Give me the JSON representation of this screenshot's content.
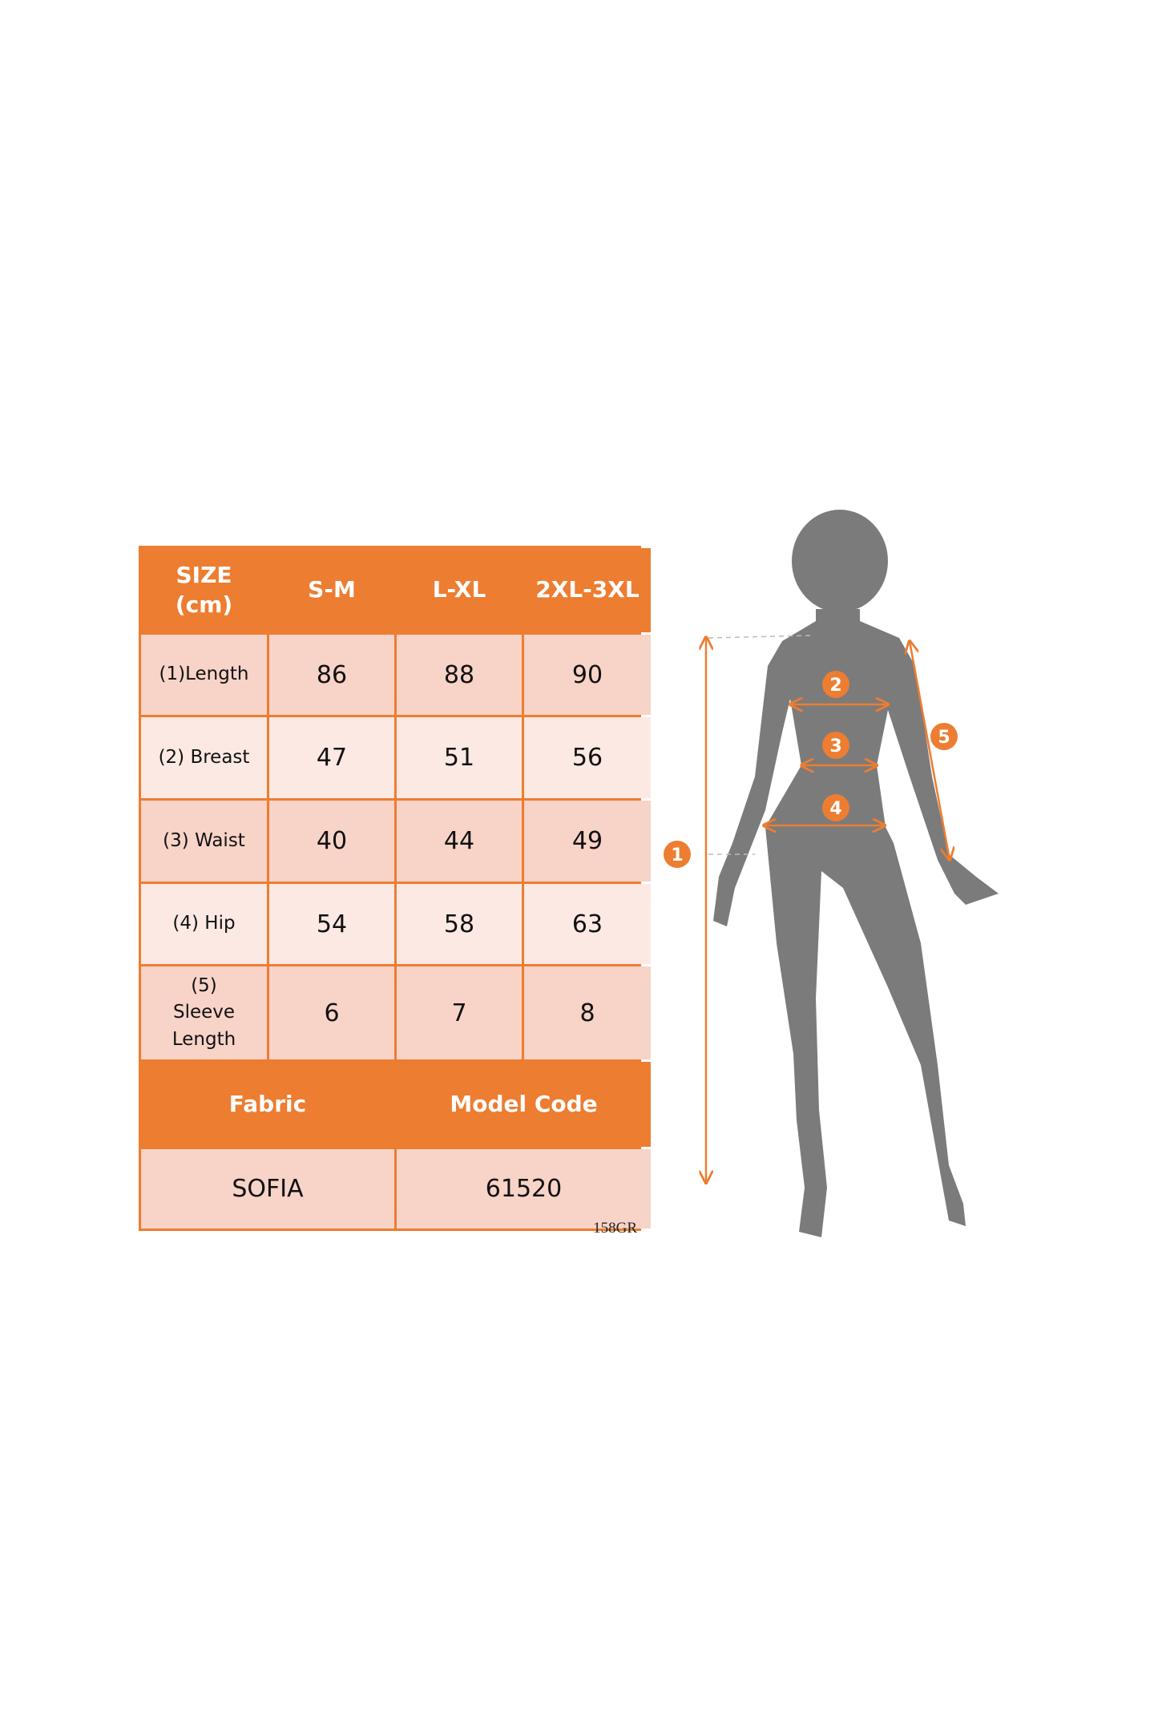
{
  "size_table": {
    "header": {
      "label": "SIZE (cm)",
      "sizes": [
        "S-M",
        "L-XL",
        "2XL-3XL"
      ]
    },
    "rows": [
      {
        "label": "(1)Length",
        "values": [
          "86",
          "88",
          "90"
        ]
      },
      {
        "label": "(2) Breast",
        "values": [
          "47",
          "51",
          "56"
        ]
      },
      {
        "label": "(3) Waist",
        "values": [
          "40",
          "44",
          "49"
        ]
      },
      {
        "label": "(4) Hip",
        "values": [
          "54",
          "58",
          "63"
        ]
      },
      {
        "label": "(5) Sleeve Length",
        "values": [
          "6",
          "7",
          "8"
        ]
      }
    ],
    "footer_headers": [
      "Fabric",
      "Model Code"
    ],
    "footer_values": [
      "SOFIA",
      "61520"
    ]
  },
  "code_note": "158GR",
  "figure": {
    "markers": [
      "1",
      "2",
      "3",
      "4",
      "5"
    ],
    "colors": {
      "accent": "#ED7D31",
      "silhouette": "#7B7B7B",
      "row_dark": "#F7D3C8",
      "row_light": "#FCE9E3"
    }
  }
}
